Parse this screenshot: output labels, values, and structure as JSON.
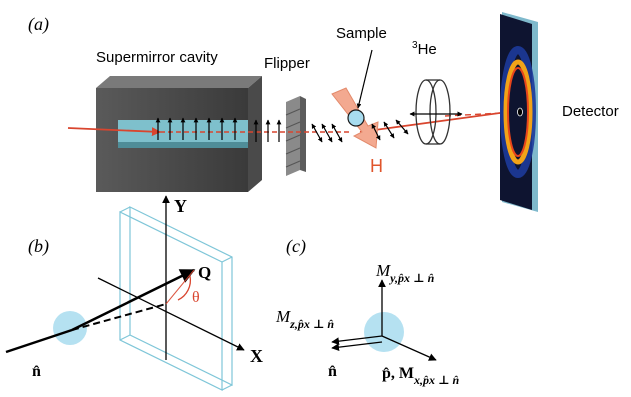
{
  "panel_a": {
    "label": "(a)",
    "supermirror_label": "Supermirror cavity",
    "flipper_label": "Flipper",
    "sample_label": "Sample",
    "he3_sup": "3",
    "he3_base": "He",
    "field_label": "H",
    "detector_label": "Detector"
  },
  "panel_b": {
    "label": "(b)",
    "axis_y": "Y",
    "axis_x": "X",
    "vec_q": "Q",
    "angle": "θ",
    "vec_n": "n̂"
  },
  "panel_c": {
    "label": "(c)",
    "my_main": "M",
    "my_sub": "y,p̂x ⊥ n̂",
    "mz_main": "M",
    "mz_sub": "z,p̂x ⊥ n̂",
    "n_label": "n̂",
    "px_prefix": "p̂, M",
    "mx_sub": "x,p̂x ⊥ n̂"
  },
  "colors": {
    "beam": "#d9452e",
    "field_arrow": "#f3a990",
    "field_text": "#e0552b",
    "sphere": "#a8dcef",
    "plane": "#7fc6d8",
    "detector_ring": "#f2a318",
    "detector_ring_inner": "#e8451b",
    "detector_bg": "#0e1430"
  }
}
